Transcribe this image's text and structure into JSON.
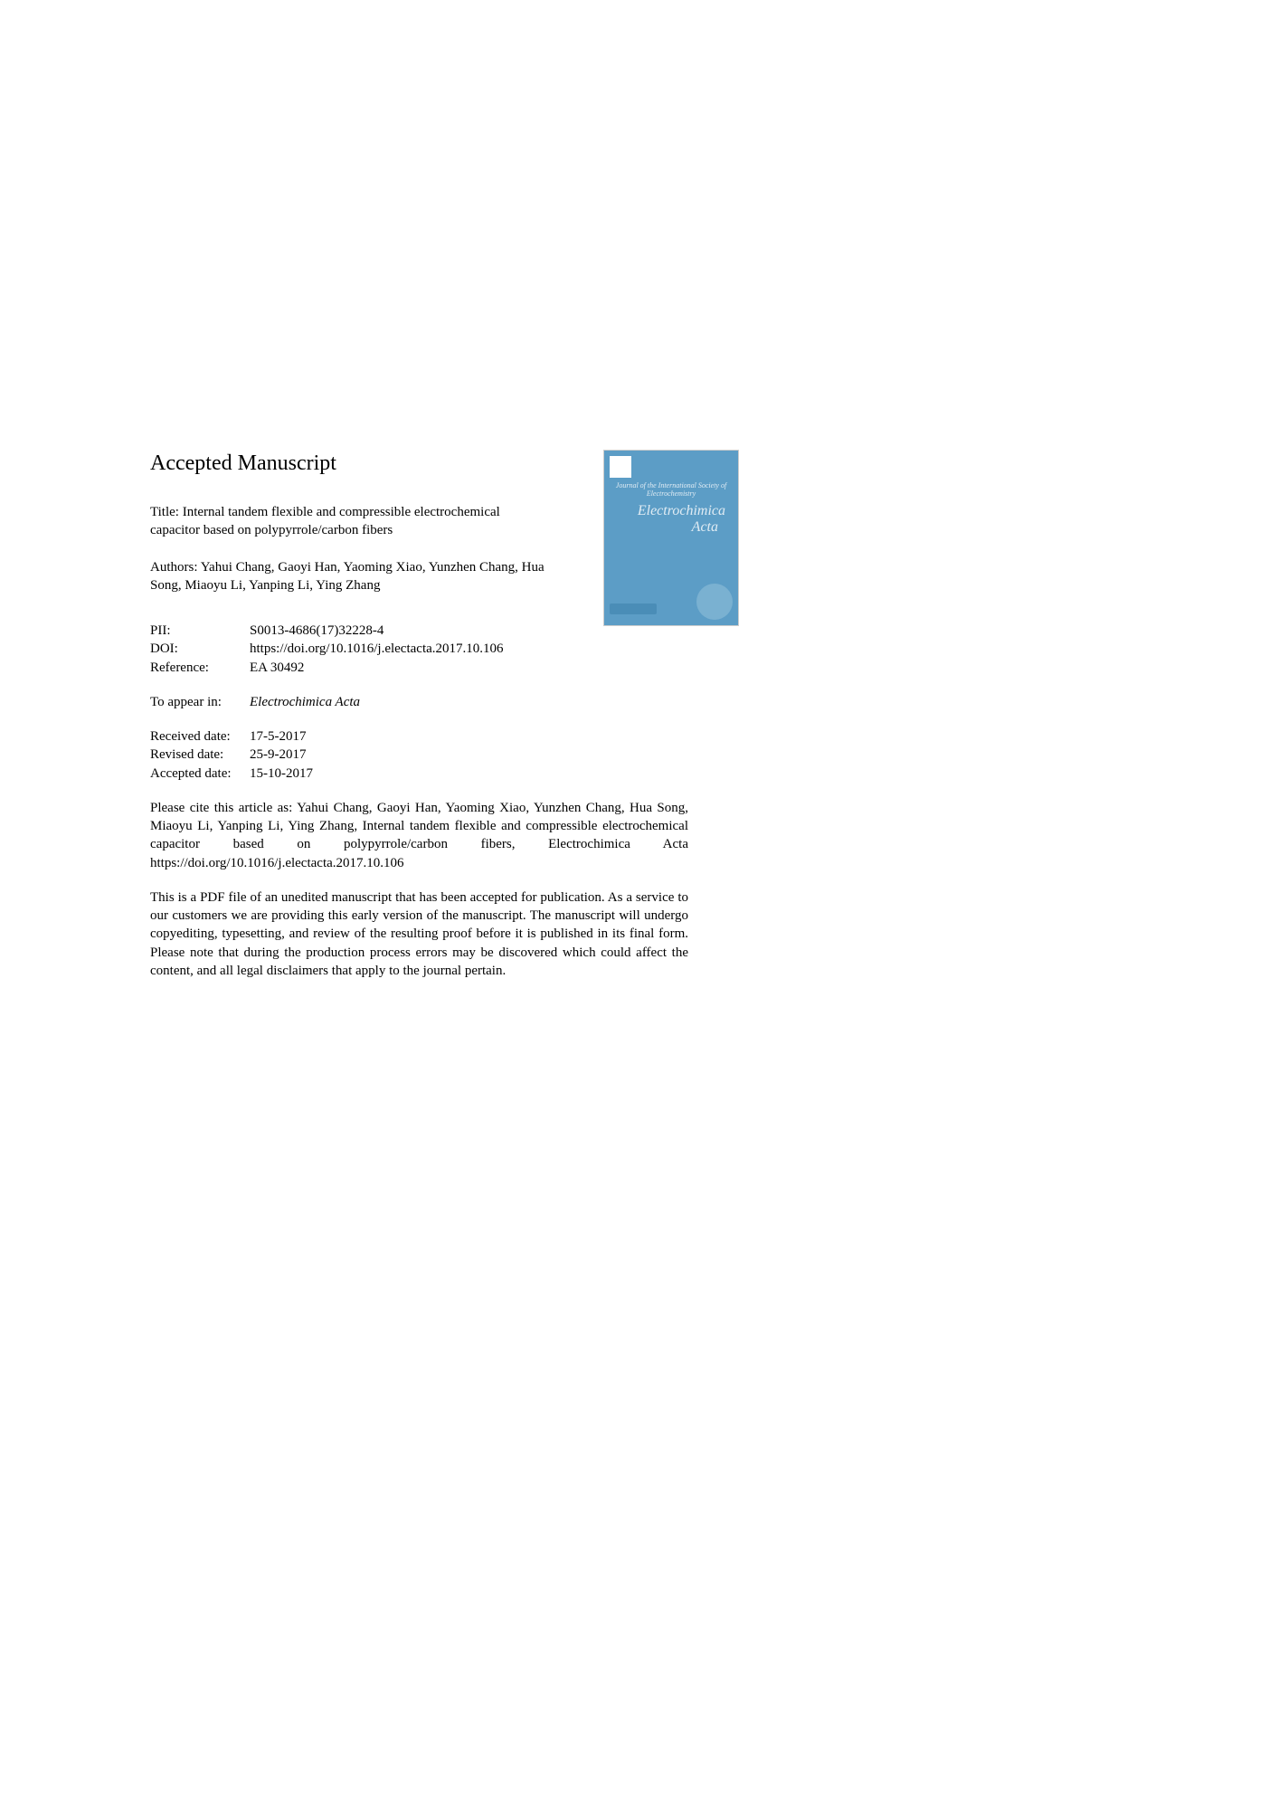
{
  "heading": "Accepted Manuscript",
  "title_label": "Title:",
  "title": "Internal tandem flexible and compressible electrochemical capacitor based on polypyrrole/carbon fibers",
  "authors_label": "Authors:",
  "authors": "Yahui Chang, Gaoyi Han, Yaoming Xiao, Yunzhen Chang, Hua Song, Miaoyu Li, Yanping Li, Ying Zhang",
  "journal_cover": {
    "subtitle": "Journal of the International Society of Electrochemistry",
    "title_line1": "Electrochimica",
    "title_line2": "Acta",
    "background_color": "#5c9dc6",
    "text_color": "#e0ecf4"
  },
  "metadata": {
    "pii_label": "PII:",
    "pii_value": "S0013-4686(17)32228-4",
    "doi_label": "DOI:",
    "doi_value": "https://doi.org/10.1016/j.electacta.2017.10.106",
    "reference_label": "Reference:",
    "reference_value": "EA 30492",
    "appear_label": "To appear in:",
    "appear_value": "Electrochimica Acta",
    "received_label": "Received date:",
    "received_value": "17-5-2017",
    "revised_label": "Revised date:",
    "revised_value": "25-9-2017",
    "accepted_label": "Accepted date:",
    "accepted_value": "15-10-2017"
  },
  "citation": "Please cite this article as: Yahui Chang, Gaoyi Han, Yaoming Xiao, Yunzhen Chang, Hua Song, Miaoyu Li, Yanping Li, Ying Zhang, Internal tandem flexible and compressible electrochemical capacitor based on polypyrrole/carbon fibers, Electrochimica Acta https://doi.org/10.1016/j.electacta.2017.10.106",
  "disclaimer": "This is a PDF file of an unedited manuscript that has been accepted for publication. As a service to our customers we are providing this early version of the manuscript. The manuscript will undergo copyediting, typesetting, and review of the resulting proof before it is published in its final form. Please note that during the production process errors may be discovered which could affect the content, and all legal disclaimers that apply to the journal pertain."
}
